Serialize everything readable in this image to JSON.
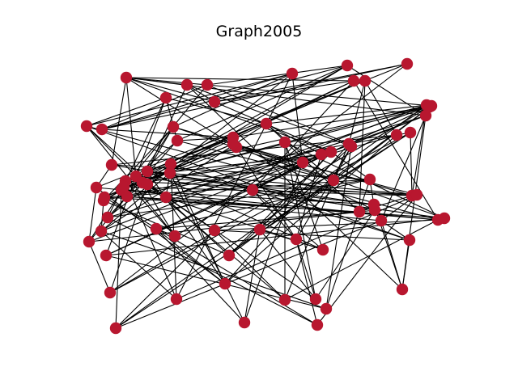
{
  "title": "Graph2005",
  "colors": {
    "node": "#b8172f",
    "edge": "#000000",
    "background": "#ffffff"
  },
  "graph": {
    "nodes": [
      "n0",
      "n1",
      "n2",
      "n3",
      "n4",
      "n5",
      "n6",
      "n7",
      "n8",
      "n9",
      "n10",
      "n11",
      "n12",
      "n13",
      "n14",
      "n15",
      "n16",
      "n17",
      "n18",
      "n19",
      "n20",
      "n21",
      "n22",
      "n23",
      "n24",
      "n25",
      "n26",
      "n27",
      "n28",
      "n29",
      "n30",
      "n31",
      "n32",
      "n33",
      "n34",
      "n35",
      "n36",
      "n37",
      "n38",
      "n39",
      "n40",
      "n41",
      "n42",
      "n43",
      "n44",
      "n45",
      "n46",
      "n47",
      "n48",
      "n49",
      "n50",
      "n51",
      "n52",
      "n53",
      "n54",
      "n55",
      "n56",
      "n57",
      "n58",
      "n59",
      "n60",
      "n61",
      "n62",
      "n63",
      "n64",
      "n65",
      "n66",
      "n67",
      "n68",
      "n69",
      "n70",
      "n71",
      "n72",
      "n73",
      "n74",
      "n75",
      "n76",
      "n77"
    ],
    "edges": [
      [
        "n0",
        "n6"
      ],
      [
        "n0",
        "n3"
      ],
      [
        "n0",
        "n4"
      ],
      [
        "n0",
        "n21"
      ],
      [
        "n0",
        "n23"
      ],
      [
        "n0",
        "n25"
      ],
      [
        "n0",
        "n9"
      ],
      [
        "n0",
        "n29"
      ],
      [
        "n1",
        "n4"
      ],
      [
        "n1",
        "n12"
      ],
      [
        "n1",
        "n20"
      ],
      [
        "n1",
        "n14"
      ],
      [
        "n1",
        "n39"
      ],
      [
        "n2",
        "n61"
      ],
      [
        "n2",
        "n9"
      ],
      [
        "n2",
        "n34"
      ],
      [
        "n2",
        "n14"
      ],
      [
        "n3",
        "n9"
      ],
      [
        "n3",
        "n33"
      ],
      [
        "n4",
        "n14"
      ],
      [
        "n4",
        "n11"
      ],
      [
        "n4",
        "n22"
      ],
      [
        "n5",
        "n13"
      ],
      [
        "n5",
        "n14"
      ],
      [
        "n5",
        "n15"
      ],
      [
        "n5",
        "n62"
      ],
      [
        "n5",
        "n28"
      ],
      [
        "n6",
        "n9"
      ],
      [
        "n6",
        "n33"
      ],
      [
        "n6",
        "n36"
      ],
      [
        "n7",
        "n22"
      ],
      [
        "n7",
        "n42"
      ],
      [
        "n7",
        "n30"
      ],
      [
        "n7",
        "n27"
      ],
      [
        "n8",
        "n13"
      ],
      [
        "n8",
        "n57"
      ],
      [
        "n8",
        "n16"
      ],
      [
        "n8",
        "n35"
      ],
      [
        "n8",
        "n20"
      ],
      [
        "n10",
        "n16"
      ],
      [
        "n10",
        "n40"
      ],
      [
        "n10",
        "n66"
      ],
      [
        "n10",
        "n48"
      ],
      [
        "n11",
        "n26"
      ],
      [
        "n11",
        "n38"
      ],
      [
        "n11",
        "n69"
      ],
      [
        "n11",
        "n31"
      ],
      [
        "n12",
        "n38"
      ],
      [
        "n12",
        "n22"
      ],
      [
        "n12",
        "n23"
      ],
      [
        "n12",
        "n44"
      ],
      [
        "n12",
        "n59"
      ],
      [
        "n13",
        "n52"
      ],
      [
        "n13",
        "n47"
      ],
      [
        "n13",
        "n58"
      ],
      [
        "n14",
        "n19"
      ],
      [
        "n15",
        "n37"
      ],
      [
        "n15",
        "n39"
      ],
      [
        "n15",
        "n40"
      ],
      [
        "n15",
        "n27"
      ],
      [
        "n16",
        "n31"
      ],
      [
        "n16",
        "n42"
      ],
      [
        "n16",
        "n48"
      ],
      [
        "n17",
        "n18"
      ],
      [
        "n17",
        "n61"
      ],
      [
        "n17",
        "n51"
      ],
      [
        "n17",
        "n66"
      ],
      [
        "n17",
        "n40"
      ],
      [
        "n18",
        "n25"
      ],
      [
        "n18",
        "n60"
      ],
      [
        "n18",
        "n45"
      ],
      [
        "n19",
        "n20"
      ],
      [
        "n19",
        "n21"
      ],
      [
        "n19",
        "n69"
      ],
      [
        "n20",
        "n31"
      ],
      [
        "n20",
        "n45"
      ],
      [
        "n21",
        "n33"
      ],
      [
        "n21",
        "n41"
      ],
      [
        "n22",
        "n60"
      ],
      [
        "n22",
        "n31"
      ],
      [
        "n22",
        "n36"
      ],
      [
        "n23",
        "n39"
      ],
      [
        "n23",
        "n32"
      ],
      [
        "n23",
        "n58"
      ],
      [
        "n23",
        "n51"
      ],
      [
        "n24",
        "n33"
      ],
      [
        "n24",
        "n53"
      ],
      [
        "n24",
        "n36"
      ],
      [
        "n24",
        "n55"
      ],
      [
        "n25",
        "n34"
      ],
      [
        "n25",
        "n43"
      ],
      [
        "n25",
        "n32"
      ],
      [
        "n26",
        "n60"
      ],
      [
        "n26",
        "n30"
      ],
      [
        "n26",
        "n37"
      ],
      [
        "n27",
        "n41"
      ],
      [
        "n27",
        "n71"
      ],
      [
        "n27",
        "n60"
      ],
      [
        "n27",
        "n56"
      ],
      [
        "n28",
        "n52"
      ],
      [
        "n28",
        "n57"
      ],
      [
        "n28",
        "n67"
      ],
      [
        "n28",
        "n37"
      ],
      [
        "n29",
        "n64"
      ],
      [
        "n29",
        "n40"
      ],
      [
        "n29",
        "n46"
      ],
      [
        "n30",
        "n52"
      ],
      [
        "n30",
        "n38"
      ],
      [
        "n30",
        "n62"
      ],
      [
        "n31",
        "n63"
      ],
      [
        "n31",
        "n51"
      ],
      [
        "n31",
        "n76"
      ],
      [
        "n32",
        "n45"
      ],
      [
        "n32",
        "n43"
      ],
      [
        "n32",
        "n65"
      ],
      [
        "n32",
        "n77"
      ],
      [
        "n33",
        "n52"
      ],
      [
        "n33",
        "n70"
      ],
      [
        "n34",
        "n53"
      ],
      [
        "n34",
        "n47"
      ],
      [
        "n35",
        "n39"
      ],
      [
        "n35",
        "n45"
      ],
      [
        "n35",
        "n71"
      ],
      [
        "n36",
        "n55"
      ],
      [
        "n36",
        "n56"
      ],
      [
        "n37",
        "n44"
      ],
      [
        "n37",
        "n53"
      ],
      [
        "n37",
        "n46"
      ],
      [
        "n38",
        "n74"
      ],
      [
        "n38",
        "n56"
      ],
      [
        "n39",
        "n58"
      ],
      [
        "n39",
        "n48"
      ],
      [
        "n40",
        "n73"
      ],
      [
        "n40",
        "n42"
      ],
      [
        "n41",
        "n62"
      ],
      [
        "n41",
        "n44"
      ],
      [
        "n41",
        "n68"
      ],
      [
        "n42",
        "n71"
      ],
      [
        "n42",
        "n49"
      ],
      [
        "n43",
        "n70"
      ],
      [
        "n43",
        "n53"
      ],
      [
        "n44",
        "n66"
      ],
      [
        "n44",
        "n59"
      ],
      [
        "n46",
        "n70"
      ],
      [
        "n46",
        "n57"
      ],
      [
        "n46",
        "n72"
      ],
      [
        "n47",
        "n63"
      ],
      [
        "n47",
        "n50"
      ],
      [
        "n48",
        "n65"
      ],
      [
        "n48",
        "n62"
      ],
      [
        "n49",
        "n67"
      ],
      [
        "n49",
        "n60"
      ],
      [
        "n49",
        "n52"
      ],
      [
        "n50",
        "n63"
      ],
      [
        "n50",
        "n75"
      ],
      [
        "n50",
        "n66"
      ],
      [
        "n51",
        "n67"
      ],
      [
        "n51",
        "n56"
      ],
      [
        "n53",
        "n73"
      ],
      [
        "n53",
        "n61"
      ],
      [
        "n54",
        "n59"
      ],
      [
        "n54",
        "n26"
      ],
      [
        "n54",
        "n13"
      ],
      [
        "n54",
        "n44"
      ],
      [
        "n55",
        "n68"
      ],
      [
        "n55",
        "n64"
      ],
      [
        "n56",
        "n72"
      ],
      [
        "n57",
        "n65"
      ],
      [
        "n57",
        "n69"
      ],
      [
        "n58",
        "n76"
      ],
      [
        "n59",
        "n71"
      ],
      [
        "n61",
        "n75"
      ],
      [
        "n63",
        "n75"
      ],
      [
        "n64",
        "n72"
      ],
      [
        "n65",
        "n76"
      ],
      [
        "n67",
        "n74"
      ],
      [
        "n68",
        "n77"
      ],
      [
        "n69",
        "n74"
      ],
      [
        "n70",
        "n77"
      ],
      [
        "n73",
        "n4"
      ],
      [
        "n73",
        "n18"
      ],
      [
        "n74",
        "n10"
      ],
      [
        "n75",
        "n1"
      ],
      [
        "n76",
        "n3"
      ],
      [
        "n77",
        "n6"
      ],
      [
        "n0",
        "n12"
      ],
      [
        "n3",
        "n59"
      ],
      [
        "n6",
        "n47"
      ],
      [
        "n9",
        "n23"
      ],
      [
        "n15",
        "n31"
      ],
      [
        "n19",
        "n27"
      ],
      [
        "n21",
        "n55"
      ],
      [
        "n24",
        "n29"
      ],
      [
        "n26",
        "n62"
      ],
      [
        "n30",
        "n41"
      ],
      [
        "n32",
        "n49"
      ],
      [
        "n35",
        "n66"
      ],
      [
        "n38",
        "n47"
      ],
      [
        "n43",
        "n64"
      ],
      [
        "n45",
        "n68"
      ],
      [
        "n50",
        "n54"
      ],
      [
        "n5",
        "n45"
      ],
      [
        "n7",
        "n18"
      ],
      [
        "n11",
        "n58"
      ],
      [
        "n13",
        "n33"
      ],
      [
        "n16",
        "n24"
      ],
      [
        "n20",
        "n73"
      ],
      [
        "n22",
        "n57"
      ],
      [
        "n28",
        "n70"
      ],
      [
        "n34",
        "n60"
      ],
      [
        "n36",
        "n71"
      ],
      [
        "n42",
        "n77"
      ],
      [
        "n48",
        "n74"
      ],
      [
        "n51",
        "n64"
      ],
      [
        "n55",
        "n76"
      ],
      [
        "n61",
        "n69"
      ],
      [
        "n63",
        "n72"
      ]
    ]
  }
}
